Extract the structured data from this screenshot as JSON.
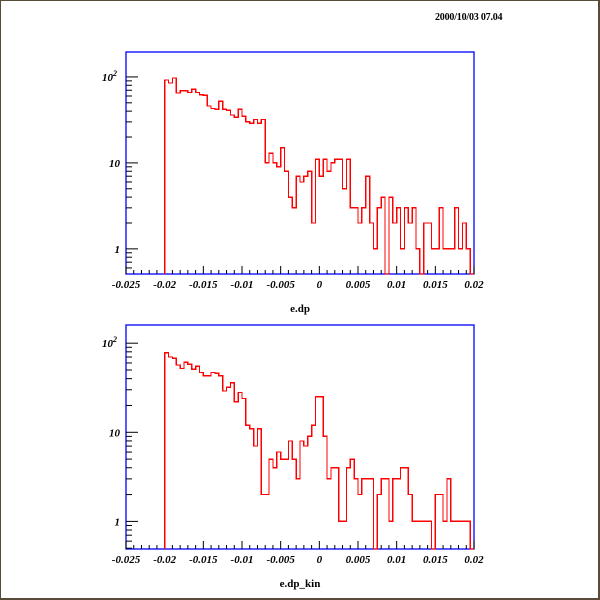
{
  "timestamp": "2000/10/03   07.04",
  "colors": {
    "frame": "#0000ff",
    "histogram": "#ff0000",
    "axis_ticks": "#000000"
  },
  "chart_data": [
    {
      "type": "histogram",
      "xlabel": "e.dp",
      "xlim": [
        -0.025,
        0.02
      ],
      "ylim": [
        0.51,
        195
      ],
      "yscale": "log",
      "x_tick_labels": [
        "-0.025",
        "-0.02",
        "-0.015",
        "-0.01",
        "-0.005",
        "0",
        "0.005",
        "0.01",
        "0.015",
        "0.02"
      ],
      "y_tick_labels": [
        "1",
        "10",
        "10^2"
      ],
      "bin_start": -0.02,
      "bin_width": 0.0005,
      "values": [
        92,
        85,
        97,
        65,
        69,
        69,
        66,
        72,
        66,
        62,
        61,
        46,
        43,
        42,
        52,
        42,
        41,
        36,
        34,
        42,
        35,
        30,
        29,
        32,
        29,
        32,
        10,
        13,
        10,
        9,
        15,
        8,
        4,
        3,
        7,
        6,
        7,
        8,
        2,
        11,
        7,
        11,
        8,
        10,
        11,
        11,
        5,
        11,
        3,
        3,
        2,
        3,
        7,
        2,
        1,
        3,
        4,
        0,
        4,
        2,
        3,
        1,
        3,
        2,
        3,
        1,
        0,
        2,
        2,
        1,
        1,
        3,
        1,
        1,
        1,
        3,
        1,
        2,
        1,
        0
      ]
    },
    {
      "type": "histogram",
      "xlabel": "e.dp_kin",
      "xlim": [
        -0.025,
        0.02
      ],
      "ylim": [
        0.49,
        160
      ],
      "yscale": "log",
      "x_tick_labels": [
        "-0.025",
        "-0.02",
        "-0.015",
        "-0.01",
        "-0.005",
        "0",
        "0.005",
        "0.01",
        "0.015",
        "0.02"
      ],
      "y_tick_labels": [
        "1",
        "10",
        "10^2"
      ],
      "bin_start": -0.02,
      "bin_width": 0.0005,
      "values": [
        78,
        70,
        68,
        57,
        52,
        61,
        58,
        51,
        55,
        47,
        43,
        43,
        47,
        46,
        43,
        29,
        32,
        36,
        22,
        28,
        24,
        12,
        11,
        7,
        11,
        2,
        2,
        5,
        4,
        6,
        5,
        5,
        8,
        5,
        3,
        8,
        7,
        9,
        12,
        25,
        25,
        9,
        3,
        4,
        4,
        1,
        1,
        4,
        5,
        3,
        2,
        3,
        3,
        3,
        0,
        2,
        3,
        3,
        1,
        3,
        3,
        4,
        4,
        2,
        1,
        1,
        1,
        1,
        1,
        0,
        2,
        2,
        1,
        3,
        1,
        1,
        1,
        1,
        1,
        0
      ]
    }
  ]
}
